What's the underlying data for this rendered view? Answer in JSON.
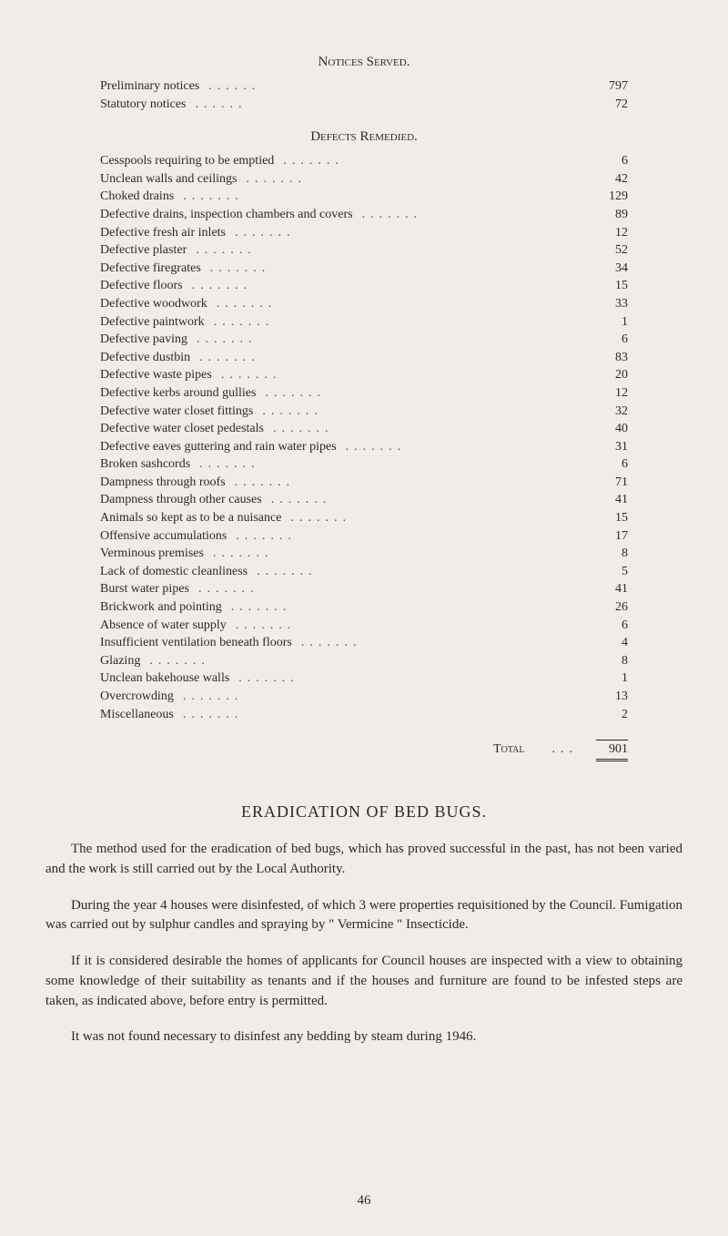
{
  "notices_served": {
    "heading": "Notices Served.",
    "rows": [
      {
        "label": "Preliminary notices",
        "value": "797"
      },
      {
        "label": "Statutory notices",
        "value": "72"
      }
    ]
  },
  "defects_remedied": {
    "heading": "Defects Remedied.",
    "rows": [
      {
        "label": "Cesspools requiring to be emptied",
        "value": "6"
      },
      {
        "label": "Unclean walls and ceilings",
        "value": "42"
      },
      {
        "label": "Choked drains",
        "value": "129"
      },
      {
        "label": "Defective drains, inspection chambers and covers",
        "value": "89"
      },
      {
        "label": "Defective fresh air inlets",
        "value": "12"
      },
      {
        "label": "Defective plaster",
        "value": "52"
      },
      {
        "label": "Defective firegrates",
        "value": "34"
      },
      {
        "label": "Defective floors",
        "value": "15"
      },
      {
        "label": "Defective woodwork",
        "value": "33"
      },
      {
        "label": "Defective paintwork",
        "value": "1"
      },
      {
        "label": "Defective paving",
        "value": "6"
      },
      {
        "label": "Defective dustbin",
        "value": "83"
      },
      {
        "label": "Defective waste pipes",
        "value": "20"
      },
      {
        "label": "Defective kerbs around gullies",
        "value": "12"
      },
      {
        "label": "Defective water closet fittings",
        "value": "32"
      },
      {
        "label": "Defective water closet pedestals",
        "value": "40"
      },
      {
        "label": "Defective eaves guttering and rain water pipes",
        "value": "31"
      },
      {
        "label": "Broken sashcords",
        "value": "6"
      },
      {
        "label": "Dampness through roofs",
        "value": "71"
      },
      {
        "label": "Dampness through other causes",
        "value": "41"
      },
      {
        "label": "Animals so kept as to be a nuisance",
        "value": "15"
      },
      {
        "label": "Offensive accumulations",
        "value": "17"
      },
      {
        "label": "Verminous premises",
        "value": "8"
      },
      {
        "label": "Lack of domestic cleanliness",
        "value": "5"
      },
      {
        "label": "Burst water pipes",
        "value": "41"
      },
      {
        "label": "Brickwork and pointing",
        "value": "26"
      },
      {
        "label": "Absence of water supply",
        "value": "6"
      },
      {
        "label": "Insufficient ventilation beneath floors",
        "value": "4"
      },
      {
        "label": "Glazing",
        "value": "8"
      },
      {
        "label": "Unclean bakehouse walls",
        "value": "1"
      },
      {
        "label": "Overcrowding",
        "value": "13"
      },
      {
        "label": "Miscellaneous",
        "value": "2"
      }
    ],
    "total_label": "Total",
    "total_value": "901"
  },
  "eradication": {
    "heading": "ERADICATION OF BED BUGS.",
    "paragraphs": [
      "The method used for the eradication of bed bugs, which has proved successful in the past, has not been varied and the work is still carried out by the Local Authority.",
      "During the year 4 houses were disinfested, of which 3 were properties requisitioned by the Council. Fumigation was carried out by sulphur candles and spraying by \" Vermicine \" Insecticide.",
      "If it is considered desirable the homes of applicants for Council houses are inspected with a view to obtaining some knowledge of their suitability as tenants and if the houses and furniture are found to be infested steps are taken, as indicated above, before entry is permitted.",
      "It was not found necessary to disinfest any bedding by steam during 1946."
    ]
  },
  "page_number": "46",
  "styling": {
    "background_color": "#f0ede8",
    "text_color": "#2a2a2a",
    "body_font_size": 15,
    "table_font_size": 14,
    "heading_font_size": 18
  }
}
